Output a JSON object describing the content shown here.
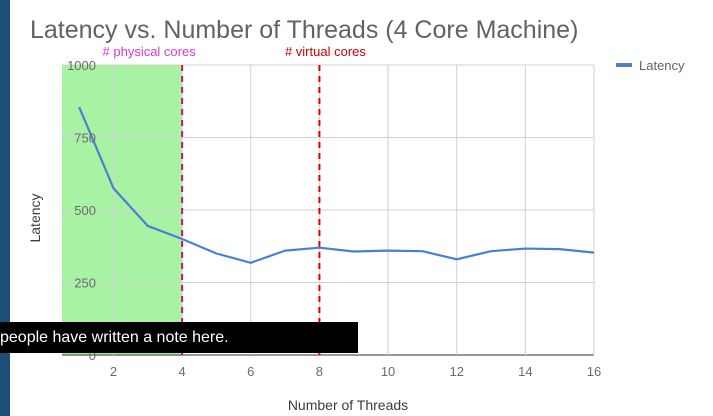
{
  "chart_data": {
    "type": "line",
    "title": "Latency vs. Number of Threads (4 Core Machine)",
    "xlabel": "Number of Threads",
    "ylabel": "Latency",
    "xlim": [
      0.5,
      16
    ],
    "ylim": [
      0,
      1000
    ],
    "x_ticks": [
      2,
      4,
      6,
      8,
      10,
      12,
      14,
      16
    ],
    "y_ticks": [
      0,
      250,
      500,
      750,
      1000
    ],
    "grid": true,
    "legend_position": "top-right",
    "series": [
      {
        "name": "Latency",
        "color": "#4a7fd6",
        "x": [
          1,
          2,
          3,
          4,
          5,
          6,
          7,
          8,
          9,
          10,
          11,
          12,
          13,
          14,
          15,
          16
        ],
        "y": [
          855,
          575,
          445,
          400,
          350,
          318,
          360,
          370,
          357,
          360,
          358,
          330,
          358,
          367,
          365,
          353
        ]
      }
    ],
    "shaded_region": {
      "x_from": 0.5,
      "x_to": 4,
      "color": "#a8f3a3"
    },
    "annotations": [
      {
        "text": "# physical cores",
        "x": 4,
        "color": "#d63ad6",
        "line_color": "#c2185b"
      },
      {
        "text": "# virtual cores",
        "x": 8,
        "color": "#cc0000",
        "line_color": "#e00000"
      }
    ]
  },
  "overlay": {
    "note_text": "people have written a note here."
  }
}
